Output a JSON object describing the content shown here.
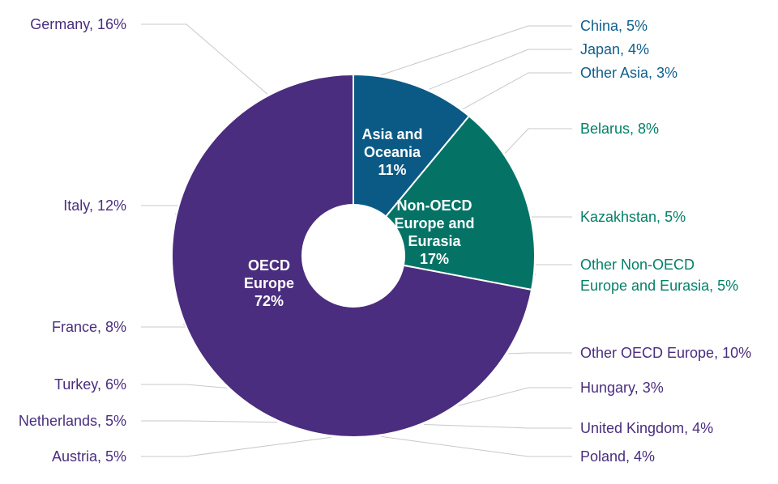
{
  "chart_data": {
    "type": "pie",
    "inner": [
      {
        "name": "Asia and Oceania",
        "value": 11,
        "color": "#0b5a86",
        "lines": [
          "Asia and",
          "Oceania",
          "11%"
        ]
      },
      {
        "name": "Non-OECD Europe and Eurasia",
        "value": 17,
        "color": "#047365",
        "lines": [
          "Non-OECD",
          "Europe and",
          "Eurasia",
          "17%"
        ]
      },
      {
        "name": "OECD Europe",
        "value": 72,
        "color": "#4a2d7e",
        "lines": [
          "OECD",
          "Europe",
          "72%"
        ]
      }
    ],
    "outer": [
      {
        "name": "China",
        "value": 5,
        "label": "China, 5%",
        "color": "#0f6aa0",
        "text_color": "#0f5e8c"
      },
      {
        "name": "Japan",
        "value": 4,
        "label": "Japan, 4%",
        "color": "#1887c4",
        "text_color": "#0f5e8c"
      },
      {
        "name": "Other Asia",
        "value": 3,
        "label": "Other Asia, 3%",
        "color": "#33a6e0",
        "text_color": "#0f5e8c"
      },
      {
        "name": "Belarus",
        "value": 8,
        "label": "Belarus, 8%",
        "color": "#069a80",
        "text_color": "#048068"
      },
      {
        "name": "Kazakhstan",
        "value": 5,
        "label": "Kazakhstan, 5%",
        "color": "#0cae96",
        "text_color": "#048068"
      },
      {
        "name": "Other Non-OECD Europe and Eurasia",
        "value": 5,
        "label": [
          "Other Non-OECD",
          "Europe and Eurasia, 5%"
        ],
        "color": "#14c2b4",
        "text_color": "#048068"
      },
      {
        "name": "Other OECD Europe",
        "value": 10,
        "label": "Other OECD Europe, 10%",
        "color": "#5c3a94",
        "text_color": "#4a2d7e"
      },
      {
        "name": "Hungary",
        "value": 3,
        "label": "Hungary, 3%",
        "color": "#6a47a2",
        "text_color": "#4a2d7e"
      },
      {
        "name": "United Kingdom",
        "value": 4,
        "label": "United Kingdom, 4%",
        "color": "#7b57ae",
        "text_color": "#4a2d7e"
      },
      {
        "name": "Poland",
        "value": 4,
        "label": "Poland, 4%",
        "color": "#8866b4",
        "text_color": "#4a2d7e"
      },
      {
        "name": "Austria",
        "value": 5,
        "label": "Austria, 5%",
        "color": "#9271b8",
        "text_color": "#4a2d7e"
      },
      {
        "name": "Netherlands",
        "value": 5,
        "label": "Netherlands, 5%",
        "color": "#9e80c0",
        "text_color": "#4a2d7e"
      },
      {
        "name": "Turkey",
        "value": 6,
        "label": "Turkey, 6%",
        "color": "#a68cc4",
        "text_color": "#4a2d7e"
      },
      {
        "name": "France",
        "value": 8,
        "label": "France, 8%",
        "color": "#b09acc",
        "text_color": "#4a2d7e"
      },
      {
        "name": "Italy",
        "value": 12,
        "label": "Italy, 12%",
        "color": "#bea7d2",
        "text_color": "#4a2d7e"
      },
      {
        "name": "Germany",
        "value": 16,
        "label": "Germany, 16%",
        "color": "#d2c8e4",
        "text_color": "#4a2d7e"
      }
    ]
  }
}
